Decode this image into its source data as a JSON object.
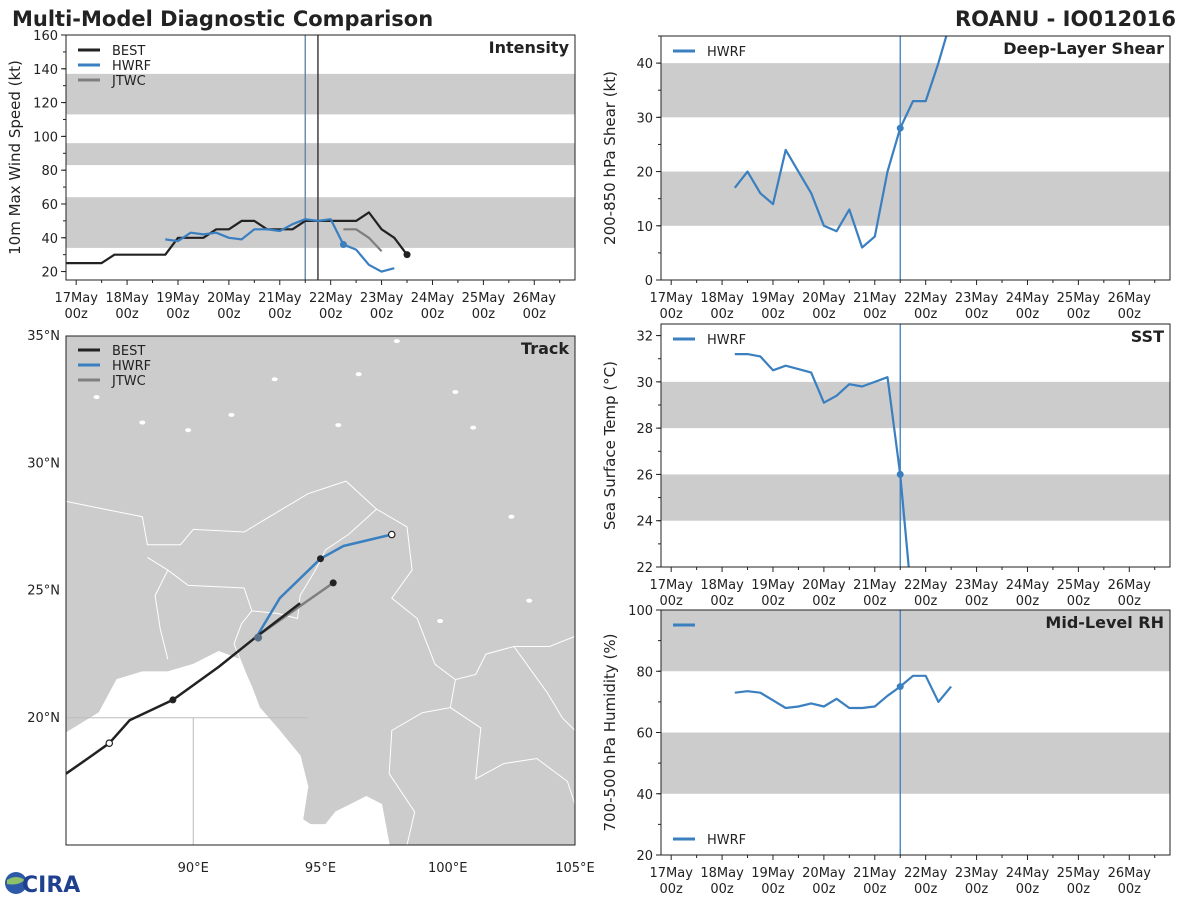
{
  "header": {
    "title": "Multi-Model Diagnostic Comparison",
    "storm": "ROANU - IO012016"
  },
  "logo": {
    "text": "CIRA"
  },
  "colors": {
    "best": "#222222",
    "hwrf": "#3a7fbf",
    "jtwc": "#7f7f7f",
    "band": "#cccccc",
    "land": "#cccccc"
  },
  "time_axis": {
    "ticks": [
      "17May\n00z",
      "18May\n00z",
      "19May\n00z",
      "20May\n00z",
      "21May\n00z",
      "22May\n00z",
      "23May\n00z",
      "24May\n00z",
      "25May\n00z",
      "26May\n00z"
    ],
    "range": [
      -0.2,
      9.8
    ],
    "current_time": 4.5,
    "best_last_time": 4.75
  },
  "chart_data": [
    {
      "id": "intensity",
      "type": "line",
      "title": "Intensity",
      "ylabel": "10m Max Wind Speed (kt)",
      "ylim": [
        15,
        160
      ],
      "yticks": [
        20,
        40,
        60,
        80,
        100,
        120,
        140,
        160
      ],
      "bands": [
        [
          34,
          64
        ],
        [
          83,
          96
        ],
        [
          113,
          137
        ]
      ],
      "legend": [
        "BEST",
        "HWRF",
        "JTWC"
      ],
      "series": [
        {
          "name": "BEST",
          "color": "#222222",
          "points": [
            [
              -0.25,
              25
            ],
            [
              0,
              25
            ],
            [
              0.5,
              25
            ],
            [
              0.75,
              30
            ],
            [
              1,
              30
            ],
            [
              1.25,
              30
            ],
            [
              1.5,
              30
            ],
            [
              1.75,
              30
            ],
            [
              2,
              40
            ],
            [
              2.25,
              40
            ],
            [
              2.5,
              40
            ],
            [
              2.75,
              45
            ],
            [
              3,
              45
            ],
            [
              3.25,
              50
            ],
            [
              3.5,
              50
            ],
            [
              3.75,
              45
            ],
            [
              4,
              45
            ],
            [
              4.25,
              45
            ],
            [
              4.5,
              50
            ],
            [
              4.75,
              50
            ],
            [
              5,
              50
            ],
            [
              5.25,
              50
            ],
            [
              5.5,
              50
            ],
            [
              5.75,
              55
            ],
            [
              6,
              45
            ],
            [
              6.25,
              40
            ],
            [
              6.5,
              30
            ]
          ],
          "marker": {
            "x": 6.5,
            "y": 30
          }
        },
        {
          "name": "HWRF",
          "color": "#3a7fbf",
          "points": [
            [
              1.75,
              39
            ],
            [
              2,
              38
            ],
            [
              2.25,
              43
            ],
            [
              2.5,
              42
            ],
            [
              2.75,
              43
            ],
            [
              3,
              40
            ],
            [
              3.25,
              39
            ],
            [
              3.5,
              45
            ],
            [
              3.75,
              45
            ],
            [
              4,
              44
            ],
            [
              4.25,
              48
            ],
            [
              4.5,
              51
            ],
            [
              4.75,
              50
            ],
            [
              5,
              51
            ],
            [
              5.25,
              36
            ],
            [
              5.5,
              33
            ],
            [
              5.75,
              24
            ],
            [
              6,
              20
            ],
            [
              6.25,
              22
            ]
          ],
          "marker": {
            "x": 5.25,
            "y": 36
          }
        },
        {
          "name": "JTWC",
          "color": "#7f7f7f",
          "points": [
            [
              5.25,
              45
            ],
            [
              5.5,
              45
            ],
            [
              5.75,
              40
            ],
            [
              6,
              32
            ]
          ]
        }
      ]
    },
    {
      "id": "shear",
      "type": "line",
      "title": "Deep-Layer Shear",
      "ylabel": "200-850 hPa Shear (kt)",
      "ylim": [
        0,
        45
      ],
      "yticks": [
        0,
        10,
        20,
        30,
        40
      ],
      "bands": [
        [
          10,
          20
        ],
        [
          30,
          40
        ]
      ],
      "legend": [
        "HWRF"
      ],
      "series": [
        {
          "name": "HWRF",
          "color": "#3a7fbf",
          "points": [
            [
              1.25,
              17
            ],
            [
              1.5,
              20
            ],
            [
              1.75,
              16
            ],
            [
              2,
              14
            ],
            [
              2.25,
              24
            ],
            [
              2.5,
              20
            ],
            [
              2.75,
              16
            ],
            [
              3,
              10
            ],
            [
              3.25,
              9
            ],
            [
              3.5,
              13
            ],
            [
              3.75,
              6
            ],
            [
              4,
              8
            ],
            [
              4.25,
              20
            ],
            [
              4.5,
              28
            ],
            [
              4.75,
              33
            ],
            [
              5,
              33
            ],
            [
              5.25,
              40
            ],
            [
              5.5,
              48
            ]
          ],
          "marker": {
            "x": 4.5,
            "y": 28
          }
        }
      ]
    },
    {
      "id": "sst",
      "type": "line",
      "title": "SST",
      "ylabel": "Sea Surface Temp (°C)",
      "ylim": [
        22,
        32.5
      ],
      "yticks": [
        22,
        24,
        26,
        28,
        30,
        32
      ],
      "bands": [
        [
          24,
          26
        ],
        [
          28,
          30
        ]
      ],
      "legend": [
        "HWRF"
      ],
      "series": [
        {
          "name": "HWRF",
          "color": "#3a7fbf",
          "points": [
            [
              1.25,
              31.2
            ],
            [
              1.5,
              31.2
            ],
            [
              1.75,
              31.1
            ],
            [
              2,
              30.5
            ],
            [
              2.25,
              30.7
            ],
            [
              2.5,
              30.55
            ],
            [
              2.75,
              30.4
            ],
            [
              3,
              29.1
            ],
            [
              3.25,
              29.4
            ],
            [
              3.5,
              29.9
            ],
            [
              3.75,
              29.8
            ],
            [
              4,
              30
            ],
            [
              4.25,
              30.2
            ],
            [
              4.5,
              26
            ],
            [
              4.75,
              20
            ]
          ],
          "marker": {
            "x": 4.5,
            "y": 26
          }
        }
      ]
    },
    {
      "id": "rh",
      "type": "line",
      "title": "Mid-Level RH",
      "ylabel": "700-500 hPa Humidity (%)",
      "ylim": [
        20,
        100
      ],
      "yticks": [
        20,
        40,
        60,
        80,
        100
      ],
      "bands": [
        [
          40,
          60
        ],
        [
          80,
          100
        ]
      ],
      "legend": [
        "HWRF"
      ],
      "series": [
        {
          "name": "HWRF",
          "color": "#3a7fbf",
          "points": [
            [
              1.25,
              73
            ],
            [
              1.5,
              73.5
            ],
            [
              1.75,
              73
            ],
            [
              2,
              70.5
            ],
            [
              2.25,
              68
            ],
            [
              2.5,
              68.5
            ],
            [
              2.75,
              69.5
            ],
            [
              3,
              68.5
            ],
            [
              3.25,
              71
            ],
            [
              3.5,
              68
            ],
            [
              3.75,
              68
            ],
            [
              4,
              68.5
            ],
            [
              4.25,
              72
            ],
            [
              4.5,
              75
            ],
            [
              4.75,
              78.5
            ],
            [
              5,
              78.5
            ],
            [
              5.25,
              70
            ],
            [
              5.5,
              75
            ]
          ],
          "marker": {
            "x": 4.5,
            "y": 75
          }
        }
      ]
    },
    {
      "id": "track",
      "type": "line",
      "title": "Track",
      "xlim": [
        85,
        105
      ],
      "ylim": [
        15,
        35
      ],
      "xticks": [
        "90°E",
        "95°E",
        "100°E",
        "105°E"
      ],
      "xtick_values": [
        90,
        95,
        100,
        105
      ],
      "yticks": [
        "20°N",
        "25°N",
        "30°N",
        "35°N"
      ],
      "ytick_values": [
        20,
        25,
        30,
        35
      ],
      "legend": [
        "BEST",
        "HWRF",
        "JTWC"
      ],
      "series": [
        {
          "name": "BEST",
          "color": "#222222",
          "points": [
            [
              85,
              17.8
            ],
            [
              86,
              18.5
            ],
            [
              86.7,
              19
            ],
            [
              87.5,
              19.9
            ],
            [
              89.2,
              20.7
            ],
            [
              91,
              22
            ],
            [
              92.5,
              23.2
            ],
            [
              94.2,
              24.5
            ]
          ],
          "open_markers": [
            [
              86.7,
              19
            ]
          ],
          "filled_markers": [
            [
              89.2,
              20.7
            ]
          ]
        },
        {
          "name": "HWRF",
          "color": "#3a7fbf",
          "points": [
            [
              92.5,
              23.2
            ],
            [
              93.4,
              24.7
            ],
            [
              95,
              26.25
            ],
            [
              95.9,
              26.75
            ],
            [
              97.8,
              27.2
            ]
          ],
          "open_markers": [
            [
              97.8,
              27.2
            ]
          ],
          "filled_markers": [
            [
              95,
              26.25
            ]
          ]
        },
        {
          "name": "JTWC",
          "color": "#7f7f7f",
          "points": [
            [
              92.5,
              23.2
            ],
            [
              95.5,
              25.3
            ]
          ],
          "filled_markers": [
            [
              95.5,
              25.3
            ]
          ]
        }
      ],
      "current_position": [
        92.55,
        23.15
      ]
    }
  ]
}
